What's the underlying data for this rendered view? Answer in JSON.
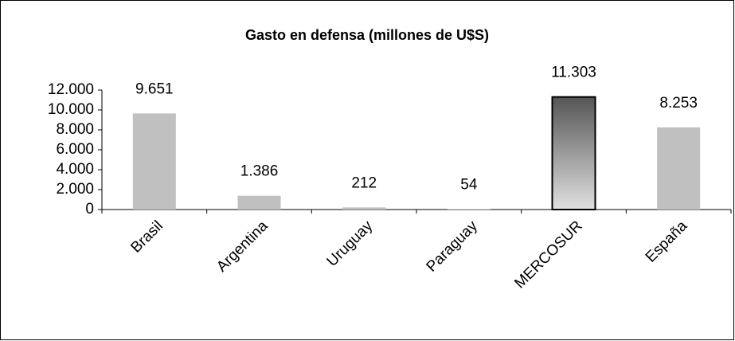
{
  "chart_data": {
    "type": "bar",
    "title": "Gasto en defensa (millones de U$S)",
    "categories": [
      "Brasil",
      "Argentina",
      "Uruguay",
      "Paraguay",
      "MERCOSUR",
      "España"
    ],
    "values": [
      9651,
      1386,
      212,
      54,
      11303,
      8253
    ],
    "value_labels": [
      "9.651",
      "1.386",
      "212",
      "54",
      "11.303",
      "8.253"
    ],
    "color": "#c0c0c0",
    "colors": [
      "#c0c0c0",
      "#c0c0c0",
      "#c0c0c0",
      "#c0c0c0",
      "#555555",
      "#c0c0c0"
    ],
    "ylim": [
      0,
      12000
    ],
    "yticks": [
      0,
      {
        "value": 2000,
        "label": "2.000"
      },
      {
        "value": 4000,
        "label": "4.000"
      },
      {
        "value": 6000,
        "label": "6.000"
      },
      {
        "value": 8000,
        "label": "8.000"
      },
      {
        "value": 10000,
        "label": "10.000"
      },
      {
        "value": 12000,
        "label": "12.000"
      }
    ],
    "grid": false
  }
}
